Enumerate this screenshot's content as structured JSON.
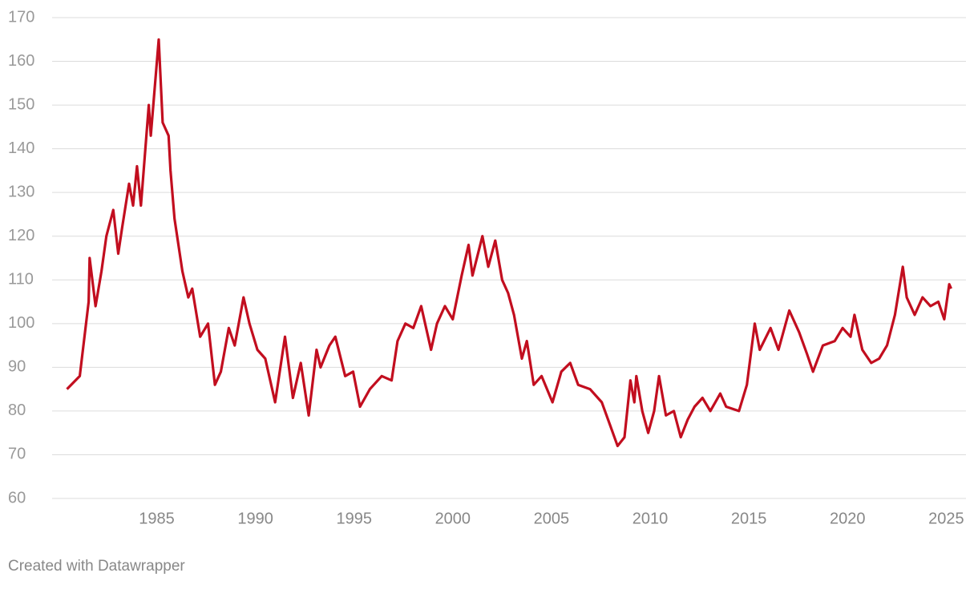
{
  "chart_data": {
    "type": "line",
    "credit": "Created with Datawrapper",
    "x": [
      1980.45,
      1981.1,
      1981.55,
      1981.6,
      1981.9,
      1982.2,
      1982.45,
      1982.8,
      1983.05,
      1983.25,
      1983.6,
      1983.8,
      1984.0,
      1984.2,
      1984.6,
      1984.7,
      1985.1,
      1985.3,
      1985.6,
      1985.7,
      1985.9,
      1986.3,
      1986.6,
      1986.8,
      1987.2,
      1987.6,
      1987.95,
      1988.25,
      1988.65,
      1988.95,
      1989.4,
      1989.7,
      1990.1,
      1990.5,
      1991.0,
      1991.5,
      1991.9,
      1992.3,
      1992.7,
      1993.1,
      1993.3,
      1993.75,
      1994.05,
      1994.55,
      1994.95,
      1995.3,
      1995.8,
      1996.4,
      1996.9,
      1997.2,
      1997.6,
      1998.0,
      1998.4,
      1998.9,
      1999.2,
      1999.6,
      2000.0,
      2000.45,
      2000.8,
      2001.0,
      2001.5,
      2001.8,
      2002.15,
      2002.5,
      2002.8,
      2003.1,
      2003.5,
      2003.75,
      2004.1,
      2004.5,
      2005.05,
      2005.5,
      2005.95,
      2006.35,
      2006.95,
      2007.55,
      2007.95,
      2008.35,
      2008.7,
      2009.0,
      2009.2,
      2009.3,
      2009.6,
      2009.9,
      2010.2,
      2010.45,
      2010.8,
      2011.2,
      2011.55,
      2011.9,
      2012.25,
      2012.65,
      2013.05,
      2013.55,
      2013.85,
      2014.5,
      2014.9,
      2015.3,
      2015.55,
      2016.1,
      2016.5,
      2017.05,
      2017.55,
      2017.95,
      2018.25,
      2018.75,
      2019.35,
      2019.75,
      2020.15,
      2020.35,
      2020.75,
      2021.2,
      2021.6,
      2022.0,
      2022.4,
      2022.8,
      2023.0,
      2023.4,
      2023.8,
      2024.2,
      2024.6,
      2024.9,
      2025.15,
      2025.25
    ],
    "series": [
      {
        "color": "#c20e1f",
        "values": [
          85,
          88,
          105,
          115,
          104,
          112,
          120,
          126,
          116,
          122,
          132,
          127,
          136,
          127,
          150,
          143,
          165,
          146,
          143,
          135,
          124,
          112,
          106,
          108,
          97,
          100,
          86,
          89,
          99,
          95,
          106,
          100,
          94,
          92,
          82,
          97,
          83,
          91,
          79,
          94,
          90,
          95,
          97,
          88,
          89,
          81,
          85,
          88,
          87,
          96,
          100,
          99,
          104,
          94,
          100,
          104,
          101,
          111,
          118,
          111,
          120,
          113,
          119,
          110,
          107,
          102,
          92,
          96,
          86,
          88,
          82,
          89,
          91,
          86,
          85,
          82,
          77,
          72,
          74,
          87,
          82,
          88,
          80,
          75,
          80,
          88,
          79,
          80,
          74,
          78,
          81,
          83,
          80,
          84,
          81,
          80,
          86,
          100,
          94,
          99,
          94,
          103,
          98,
          93,
          89,
          95,
          96,
          99,
          97,
          102,
          94,
          91,
          92,
          95,
          102,
          113,
          106,
          102,
          106,
          104,
          105,
          101,
          109,
          108
        ]
      }
    ],
    "xlim": [
      1979.7,
      2026.0
    ],
    "xticks": [
      1985,
      1990,
      1995,
      2000,
      2005,
      2010,
      2015,
      2020,
      2025
    ],
    "ylim": [
      60,
      170
    ],
    "yticks": [
      60,
      70,
      80,
      90,
      100,
      110,
      120,
      130,
      140,
      150,
      160,
      170
    ],
    "grid": true
  }
}
